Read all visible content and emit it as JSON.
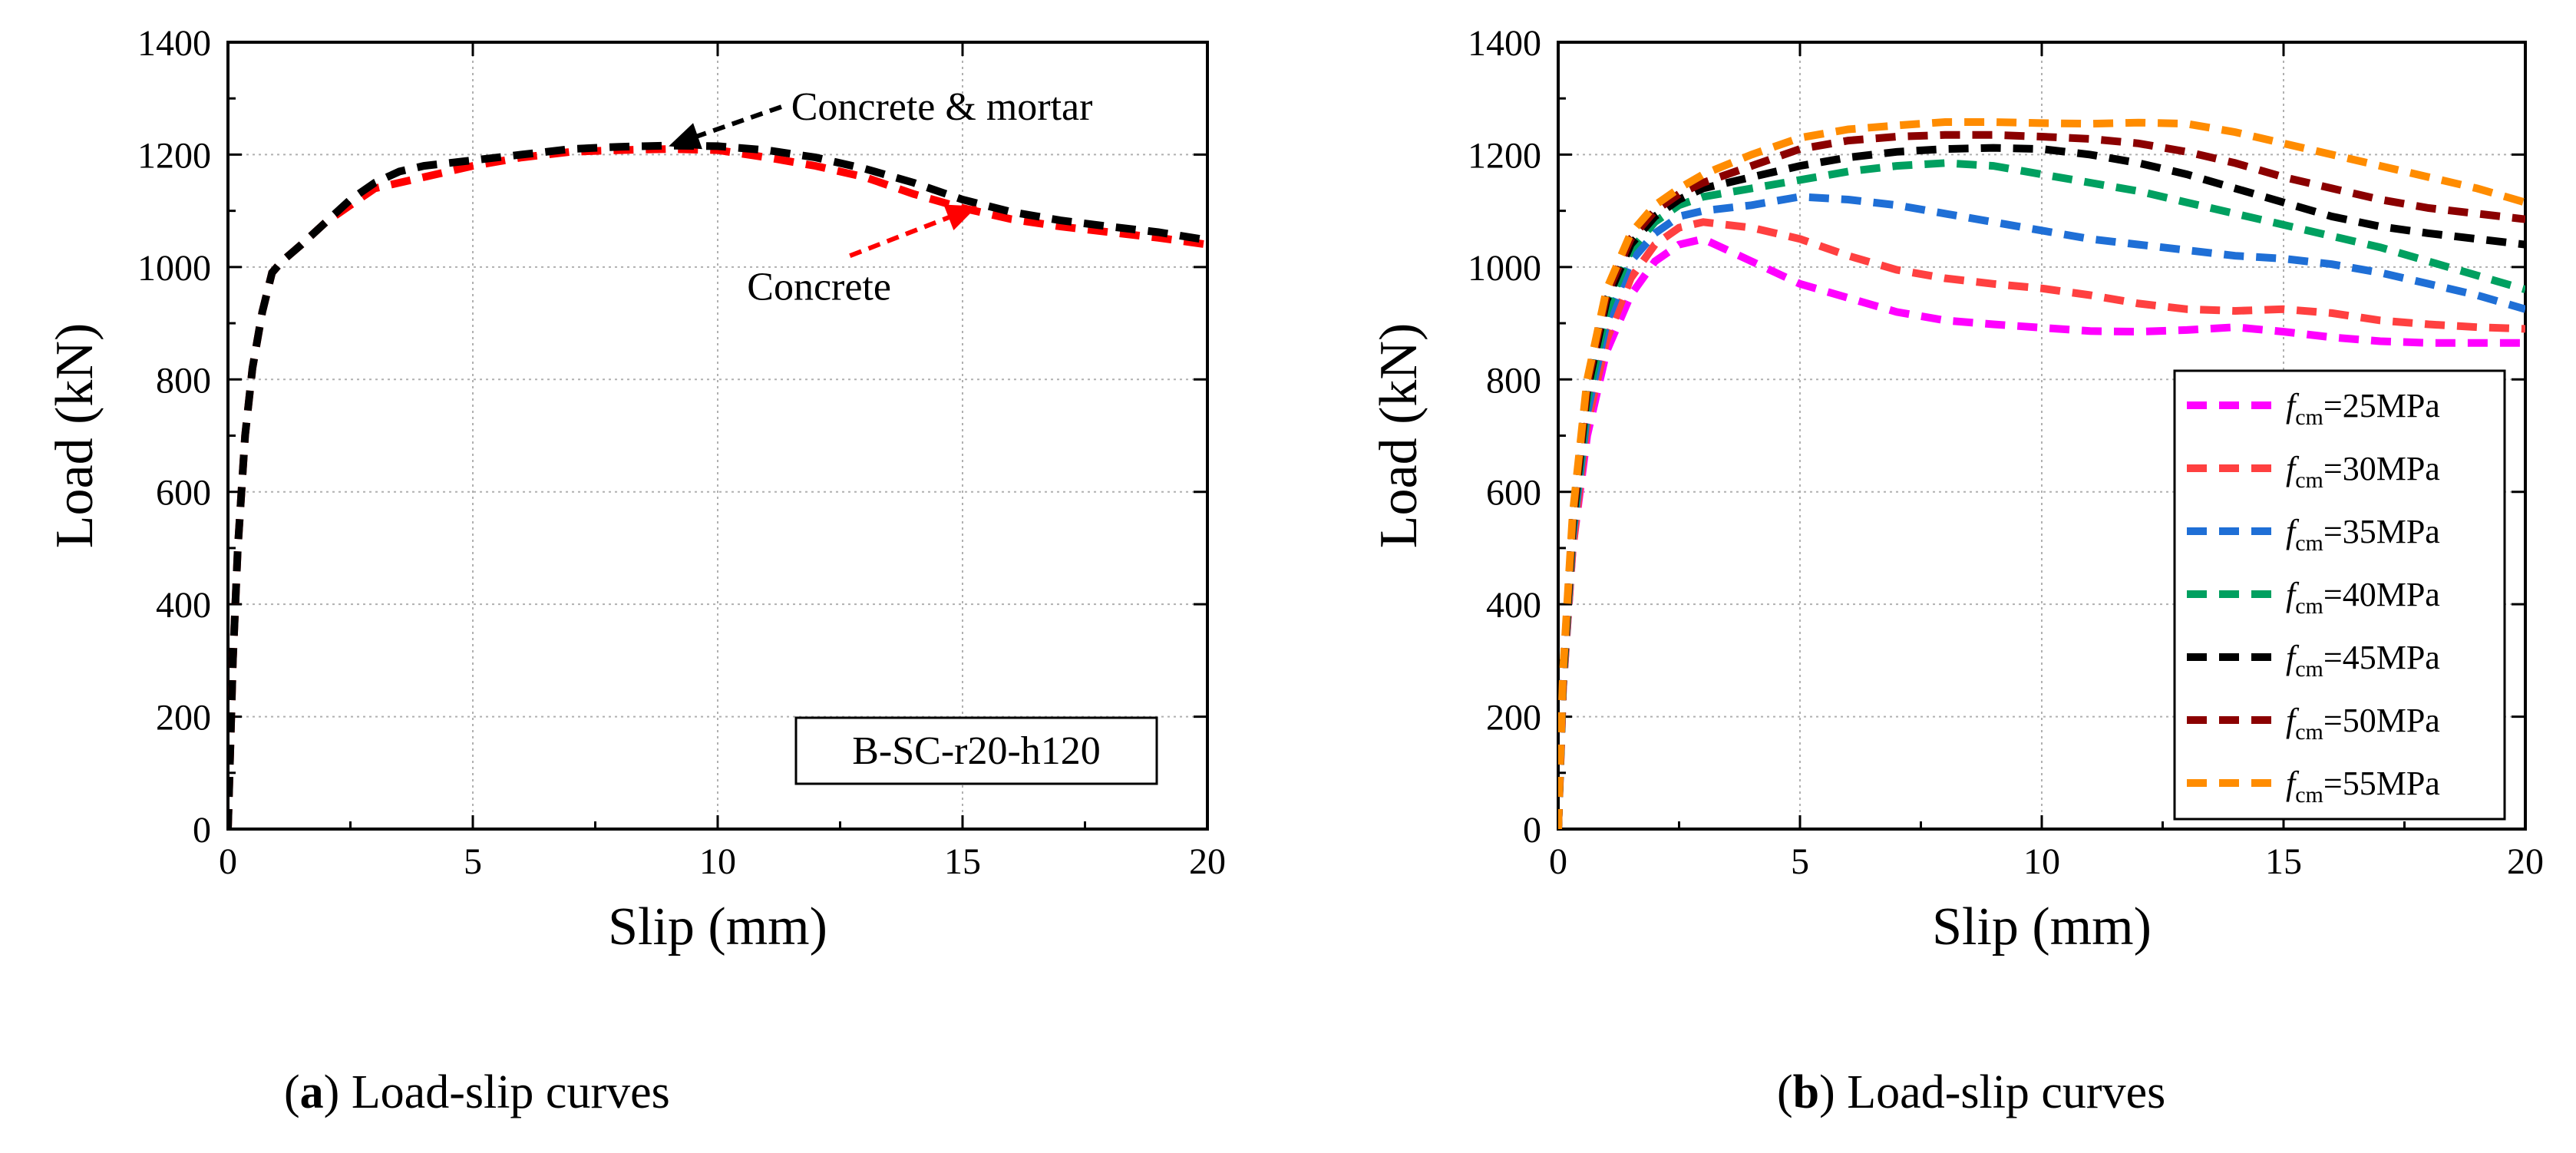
{
  "chart_data": [
    {
      "type": "line",
      "panel": "a",
      "xlabel": "Slip (mm)",
      "ylabel": "Load (kN)",
      "xlim": [
        0,
        20
      ],
      "ylim": [
        0,
        1400
      ],
      "xticks": [
        0,
        5,
        10,
        15,
        20
      ],
      "yticks": [
        0,
        200,
        400,
        600,
        800,
        1000,
        1200,
        1400
      ],
      "grid": true,
      "box_label": "B-SC-r20-h120",
      "annotations": [
        {
          "text": "Concrete & mortar",
          "arrow_color": "#000000",
          "text_xy": [
            11.5,
            1285
          ],
          "arrow_from": [
            11.3,
            1285
          ],
          "arrow_to": [
            9.0,
            1215
          ]
        },
        {
          "text": "Concrete",
          "arrow_color": "#ff0000",
          "text_xy": [
            10.6,
            965
          ],
          "arrow_from": [
            12.7,
            1020
          ],
          "arrow_to": [
            15.3,
            1108
          ]
        }
      ],
      "series": [
        {
          "name": "Concrete",
          "color": "#ff0000",
          "x": [
            0,
            0.05,
            0.1,
            0.2,
            0.35,
            0.5,
            0.7,
            0.9,
            1.1,
            1.5,
            2,
            2.5,
            3,
            4,
            5,
            6,
            7,
            8,
            9,
            10,
            11,
            12,
            13,
            14,
            15,
            16,
            17,
            18,
            19,
            20
          ],
          "y": [
            0,
            150,
            300,
            500,
            700,
            820,
            920,
            990,
            1010,
            1040,
            1080,
            1110,
            1140,
            1160,
            1180,
            1195,
            1205,
            1208,
            1210,
            1208,
            1195,
            1180,
            1160,
            1130,
            1105,
            1085,
            1072,
            1062,
            1052,
            1040
          ]
        },
        {
          "name": "Concrete & mortar",
          "color": "#000000",
          "x": [
            0,
            0.05,
            0.1,
            0.2,
            0.35,
            0.5,
            0.7,
            0.9,
            1.1,
            1.5,
            2,
            2.5,
            3,
            3.5,
            4,
            5,
            6,
            7,
            8,
            9,
            10,
            11,
            12,
            13,
            14,
            15,
            16,
            17,
            18,
            19,
            20
          ],
          "y": [
            0,
            150,
            300,
            500,
            700,
            820,
            920,
            990,
            1010,
            1040,
            1080,
            1120,
            1150,
            1170,
            1180,
            1190,
            1200,
            1210,
            1214,
            1216,
            1215,
            1208,
            1195,
            1175,
            1150,
            1120,
            1098,
            1083,
            1072,
            1062,
            1048
          ]
        }
      ]
    },
    {
      "type": "line",
      "panel": "b",
      "xlabel": "Slip (mm)",
      "ylabel": "Load (kN)",
      "xlim": [
        0,
        20
      ],
      "ylim": [
        0,
        1400
      ],
      "xticks": [
        0,
        5,
        10,
        15,
        20
      ],
      "yticks": [
        0,
        200,
        400,
        600,
        800,
        1000,
        1200,
        1400
      ],
      "grid": true,
      "legend_position": "bottom-right",
      "legend_symbol": "f",
      "legend_subscript": "cm",
      "series": [
        {
          "name": "=25MPa",
          "color": "#ff00ff",
          "x": [
            0,
            0.1,
            0.3,
            0.6,
            1.0,
            1.5,
            2.0,
            2.5,
            3,
            4,
            5,
            6,
            7,
            8,
            9,
            10,
            11,
            12,
            13,
            14,
            15,
            16,
            17,
            18,
            19,
            20
          ],
          "y": [
            0,
            250,
            500,
            700,
            850,
            950,
            1010,
            1040,
            1050,
            1010,
            970,
            945,
            920,
            905,
            898,
            892,
            886,
            885,
            888,
            893,
            885,
            875,
            868,
            865,
            865,
            865
          ]
        },
        {
          "name": "=30MPa",
          "color": "#ff4040",
          "x": [
            0,
            0.1,
            0.3,
            0.6,
            1.0,
            1.5,
            2.0,
            2.5,
            3,
            4,
            5,
            6,
            7,
            8,
            9,
            10,
            11,
            12,
            13,
            14,
            15,
            16,
            17,
            18,
            19,
            20
          ],
          "y": [
            0,
            250,
            500,
            720,
            870,
            980,
            1040,
            1070,
            1080,
            1070,
            1050,
            1020,
            995,
            980,
            970,
            962,
            950,
            935,
            925,
            922,
            925,
            918,
            905,
            898,
            893,
            890
          ]
        },
        {
          "name": "=35MPa",
          "color": "#1f6fd6",
          "x": [
            0,
            0.1,
            0.3,
            0.6,
            1.0,
            1.5,
            2.0,
            2.5,
            3,
            4,
            5,
            6,
            7,
            8,
            9,
            10,
            11,
            12,
            13,
            14,
            15,
            16,
            17,
            18,
            19,
            20
          ],
          "y": [
            0,
            260,
            520,
            740,
            900,
            1010,
            1060,
            1090,
            1100,
            1110,
            1125,
            1120,
            1110,
            1095,
            1080,
            1065,
            1050,
            1040,
            1030,
            1020,
            1015,
            1005,
            990,
            970,
            950,
            925
          ]
        },
        {
          "name": "=40MPa",
          "color": "#00a060",
          "x": [
            0,
            0.1,
            0.3,
            0.6,
            1.0,
            1.5,
            2.0,
            2.5,
            3,
            4,
            5,
            6,
            7,
            8,
            9,
            10,
            11,
            12,
            13,
            14,
            15,
            16,
            17,
            18,
            19,
            20
          ],
          "y": [
            0,
            260,
            530,
            760,
            920,
            1030,
            1080,
            1110,
            1125,
            1140,
            1155,
            1170,
            1180,
            1185,
            1180,
            1165,
            1150,
            1135,
            1115,
            1095,
            1075,
            1055,
            1035,
            1010,
            985,
            960
          ]
        },
        {
          "name": "=45MPa",
          "color": "#000000",
          "x": [
            0,
            0.1,
            0.3,
            0.6,
            1.0,
            1.5,
            2.0,
            2.5,
            3,
            4,
            5,
            6,
            7,
            8,
            9,
            10,
            11,
            12,
            13,
            14,
            15,
            16,
            17,
            18,
            19,
            20
          ],
          "y": [
            0,
            270,
            540,
            780,
            940,
            1040,
            1090,
            1120,
            1140,
            1160,
            1180,
            1195,
            1205,
            1210,
            1212,
            1210,
            1200,
            1185,
            1165,
            1140,
            1115,
            1090,
            1072,
            1060,
            1050,
            1040
          ]
        },
        {
          "name": "=50MPa",
          "color": "#8b0000",
          "x": [
            0,
            0.1,
            0.3,
            0.6,
            1.0,
            1.5,
            2.0,
            2.5,
            3,
            4,
            5,
            6,
            7,
            8,
            9,
            10,
            11,
            12,
            13,
            14,
            15,
            16,
            17,
            18,
            19,
            20
          ],
          "y": [
            0,
            275,
            550,
            790,
            950,
            1050,
            1100,
            1130,
            1150,
            1180,
            1210,
            1225,
            1232,
            1235,
            1235,
            1232,
            1228,
            1220,
            1205,
            1185,
            1160,
            1140,
            1120,
            1105,
            1095,
            1085
          ]
        },
        {
          "name": "=55MPa",
          "color": "#ff8c00",
          "x": [
            0,
            0.1,
            0.3,
            0.6,
            1.0,
            1.5,
            2.0,
            2.5,
            3,
            4,
            5,
            6,
            7,
            8,
            9,
            10,
            11,
            12,
            13,
            14,
            15,
            16,
            17,
            18,
            19,
            20
          ],
          "y": [
            0,
            280,
            560,
            800,
            960,
            1060,
            1110,
            1140,
            1165,
            1200,
            1230,
            1245,
            1252,
            1258,
            1258,
            1256,
            1255,
            1257,
            1255,
            1240,
            1220,
            1200,
            1180,
            1160,
            1140,
            1115
          ]
        }
      ]
    }
  ],
  "captions": [
    {
      "letter": "a",
      "text": " Load-slip curves"
    },
    {
      "letter": "b",
      "text": " Load-slip curves"
    }
  ]
}
